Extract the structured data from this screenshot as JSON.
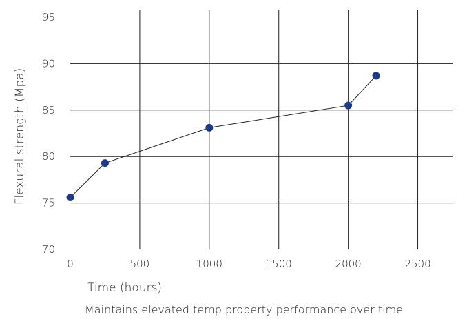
{
  "chart_data": {
    "type": "line",
    "title": "",
    "xlabel": "Time (hours)",
    "ylabel": "Flexural strength (Mpa)",
    "caption": "Maintains elevated temp property performance over time",
    "xlim": [
      0,
      2750
    ],
    "ylim": [
      70,
      95
    ],
    "xticks": [
      0,
      500,
      1000,
      1500,
      2000,
      2500
    ],
    "yticks": [
      70,
      75,
      80,
      85,
      90,
      95
    ],
    "grid": true,
    "series": [
      {
        "color": "#1f3a8a",
        "x": [
          0,
          250,
          1000,
          2000,
          2200
        ],
        "y": [
          75.6,
          79.3,
          83.1,
          85.5,
          88.7
        ]
      }
    ]
  }
}
